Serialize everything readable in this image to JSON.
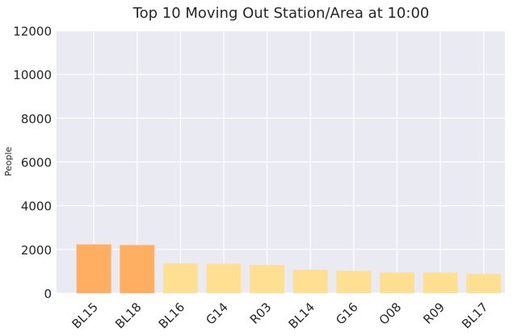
{
  "chart_data": {
    "type": "bar",
    "title": "Top 10 Moving Out Station/Area at 10:00",
    "xlabel": "",
    "ylabel": "People",
    "categories": [
      "BL15",
      "BL18",
      "BL16",
      "G14",
      "R03",
      "BL14",
      "G16",
      "O08",
      "R09",
      "BL17"
    ],
    "values": [
      2230,
      2200,
      1360,
      1350,
      1290,
      1070,
      1020,
      950,
      950,
      880
    ],
    "ylim": [
      0,
      12000
    ],
    "yticks": [
      0,
      2000,
      4000,
      6000,
      8000,
      10000,
      12000
    ],
    "grid": true,
    "colors": {
      "highlight": "#FFAE62",
      "normal": "#FFDF92",
      "plot_background": "#EAEAF2",
      "grid": "#FFFFFF",
      "text": "#262626"
    },
    "highlight_count": 2
  }
}
